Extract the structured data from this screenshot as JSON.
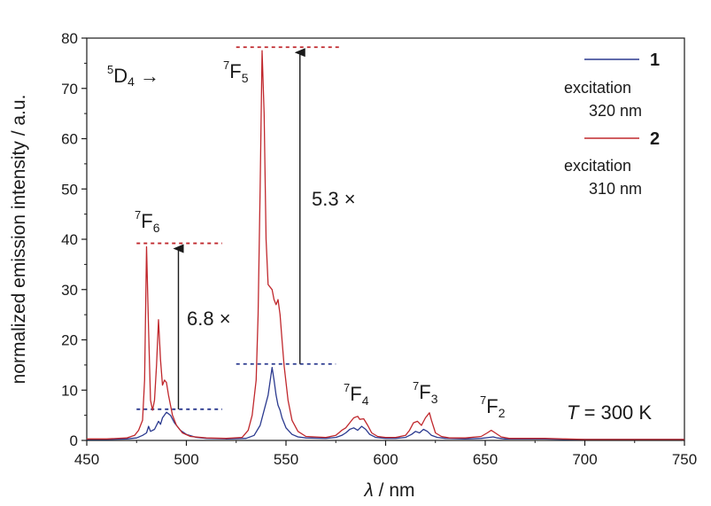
{
  "chart_data": {
    "type": "line",
    "xlabel_symbol": "λ",
    "xlabel_rest": " / nm",
    "ylabel": "normalized emission intensity / a.u.",
    "xlim": [
      450,
      750
    ],
    "ylim": [
      0,
      80
    ],
    "xticks": [
      450,
      500,
      550,
      600,
      650,
      700,
      750
    ],
    "yticks": [
      0,
      10,
      20,
      30,
      40,
      50,
      60,
      70,
      80
    ],
    "colors": {
      "series1": "#2b3a8f",
      "series2": "#c0282d",
      "axis": "#1a1a1a"
    },
    "series": [
      {
        "name": "1",
        "legend_note_line1": "excitation",
        "legend_note_line2": "320 nm",
        "color": "#2b3a8f",
        "points": [
          [
            450,
            0.2
          ],
          [
            460,
            0.2
          ],
          [
            470,
            0.3
          ],
          [
            475,
            0.5
          ],
          [
            478,
            1.0
          ],
          [
            480,
            1.5
          ],
          [
            481,
            2.8
          ],
          [
            482,
            1.8
          ],
          [
            484,
            2.2
          ],
          [
            486,
            3.8
          ],
          [
            487,
            3.2
          ],
          [
            488,
            4.5
          ],
          [
            490,
            5.6
          ],
          [
            492,
            5.0
          ],
          [
            494,
            3.5
          ],
          [
            497,
            2.0
          ],
          [
            500,
            1.2
          ],
          [
            505,
            0.6
          ],
          [
            510,
            0.4
          ],
          [
            520,
            0.3
          ],
          [
            530,
            0.4
          ],
          [
            534,
            1.0
          ],
          [
            537,
            3.0
          ],
          [
            539,
            6.0
          ],
          [
            541,
            9.0
          ],
          [
            543,
            14.5
          ],
          [
            544,
            12.0
          ],
          [
            545,
            9.0
          ],
          [
            546,
            7.0
          ],
          [
            547,
            6.0
          ],
          [
            548,
            4.5
          ],
          [
            550,
            2.5
          ],
          [
            553,
            1.2
          ],
          [
            556,
            0.7
          ],
          [
            560,
            0.5
          ],
          [
            570,
            0.4
          ],
          [
            575,
            0.6
          ],
          [
            578,
            1.0
          ],
          [
            580,
            1.5
          ],
          [
            582,
            2.2
          ],
          [
            584,
            2.5
          ],
          [
            586,
            2.0
          ],
          [
            588,
            2.8
          ],
          [
            590,
            2.2
          ],
          [
            592,
            1.2
          ],
          [
            595,
            0.6
          ],
          [
            600,
            0.4
          ],
          [
            605,
            0.4
          ],
          [
            610,
            0.6
          ],
          [
            613,
            1.2
          ],
          [
            615,
            1.8
          ],
          [
            617,
            1.5
          ],
          [
            619,
            2.2
          ],
          [
            621,
            1.8
          ],
          [
            623,
            1.0
          ],
          [
            626,
            0.6
          ],
          [
            630,
            0.4
          ],
          [
            640,
            0.3
          ],
          [
            648,
            0.4
          ],
          [
            652,
            0.6
          ],
          [
            654,
            0.7
          ],
          [
            656,
            0.5
          ],
          [
            660,
            0.3
          ],
          [
            670,
            0.3
          ],
          [
            680,
            0.3
          ],
          [
            690,
            0.2
          ],
          [
            700,
            0.2
          ],
          [
            720,
            0.2
          ],
          [
            750,
            0.2
          ]
        ]
      },
      {
        "name": "2",
        "legend_note_line1": "excitation",
        "legend_note_line2": "310 nm",
        "color": "#c0282d",
        "points": [
          [
            450,
            0.3
          ],
          [
            460,
            0.3
          ],
          [
            470,
            0.5
          ],
          [
            474,
            1.0
          ],
          [
            476,
            2.0
          ],
          [
            478,
            4.0
          ],
          [
            479,
            12.0
          ],
          [
            480,
            38.5
          ],
          [
            481,
            22.0
          ],
          [
            482,
            8.0
          ],
          [
            483,
            6.0
          ],
          [
            484,
            8.0
          ],
          [
            485,
            15.0
          ],
          [
            486,
            24.0
          ],
          [
            487,
            16.0
          ],
          [
            488,
            11.0
          ],
          [
            489,
            12.0
          ],
          [
            490,
            11.5
          ],
          [
            491,
            9.0
          ],
          [
            493,
            5.0
          ],
          [
            495,
            3.0
          ],
          [
            498,
            1.5
          ],
          [
            502,
            0.8
          ],
          [
            510,
            0.5
          ],
          [
            520,
            0.4
          ],
          [
            528,
            0.6
          ],
          [
            531,
            2.0
          ],
          [
            533,
            5.0
          ],
          [
            535,
            12.0
          ],
          [
            536,
            25.0
          ],
          [
            537,
            50.0
          ],
          [
            538,
            77.5
          ],
          [
            539,
            65.0
          ],
          [
            540,
            40.0
          ],
          [
            541,
            31.0
          ],
          [
            543,
            30.0
          ],
          [
            544,
            28.0
          ],
          [
            545,
            27.0
          ],
          [
            546,
            28.0
          ],
          [
            547,
            25.0
          ],
          [
            548,
            20.0
          ],
          [
            549,
            15.0
          ],
          [
            551,
            8.0
          ],
          [
            553,
            4.0
          ],
          [
            556,
            1.8
          ],
          [
            560,
            0.8
          ],
          [
            570,
            0.6
          ],
          [
            575,
            1.0
          ],
          [
            578,
            2.0
          ],
          [
            580,
            2.5
          ],
          [
            582,
            3.5
          ],
          [
            584,
            4.5
          ],
          [
            586,
            4.8
          ],
          [
            587,
            4.2
          ],
          [
            589,
            4.3
          ],
          [
            591,
            3.0
          ],
          [
            593,
            1.5
          ],
          [
            596,
            0.8
          ],
          [
            600,
            0.6
          ],
          [
            605,
            0.6
          ],
          [
            610,
            1.0
          ],
          [
            612,
            2.0
          ],
          [
            614,
            3.5
          ],
          [
            616,
            3.8
          ],
          [
            618,
            3.0
          ],
          [
            620,
            4.5
          ],
          [
            622,
            5.5
          ],
          [
            623,
            4.0
          ],
          [
            625,
            1.5
          ],
          [
            628,
            0.8
          ],
          [
            632,
            0.5
          ],
          [
            640,
            0.5
          ],
          [
            648,
            0.8
          ],
          [
            651,
            1.5
          ],
          [
            653,
            2.0
          ],
          [
            655,
            1.5
          ],
          [
            658,
            0.7
          ],
          [
            662,
            0.4
          ],
          [
            670,
            0.4
          ],
          [
            680,
            0.4
          ],
          [
            690,
            0.3
          ],
          [
            700,
            0.2
          ],
          [
            720,
            0.2
          ],
          [
            750,
            0.2
          ]
        ]
      }
    ],
    "reference_lines": [
      {
        "color": "#c0282d",
        "y": 39.2,
        "x_from": 475,
        "x_to": 518
      },
      {
        "color": "#c0282d",
        "y": 78.2,
        "x_from": 525,
        "x_to": 578
      },
      {
        "color": "#2b3a8f",
        "y": 6.2,
        "x_from": 475,
        "x_to": 518
      },
      {
        "color": "#2b3a8f",
        "y": 15.2,
        "x_from": 525,
        "x_to": 575
      }
    ],
    "arrows": [
      {
        "x": 496,
        "y_from": 6.2,
        "y_to": 39.2
      },
      {
        "x": 557,
        "y_from": 15.2,
        "y_to": 78.2
      }
    ],
    "annotations": {
      "d4_sup": "5",
      "d4_main": "D",
      "d4_sub": "4",
      "d4_arrow": " →",
      "f6_sup": "7",
      "f6_main": "F",
      "f6_sub": "6",
      "f5_sup": "7",
      "f5_main": "F",
      "f5_sub": "5",
      "f4_sup": "7",
      "f4_main": "F",
      "f4_sub": "4",
      "f3_sup": "7",
      "f3_main": "F",
      "f3_sub": "3",
      "f2_sup": "7",
      "f2_main": "F",
      "f2_sub": "2",
      "ratio_f6": "6.8 ×",
      "ratio_f5": "5.3 ×",
      "temp_var": "T",
      "temp_rest": " = 300 K"
    }
  }
}
